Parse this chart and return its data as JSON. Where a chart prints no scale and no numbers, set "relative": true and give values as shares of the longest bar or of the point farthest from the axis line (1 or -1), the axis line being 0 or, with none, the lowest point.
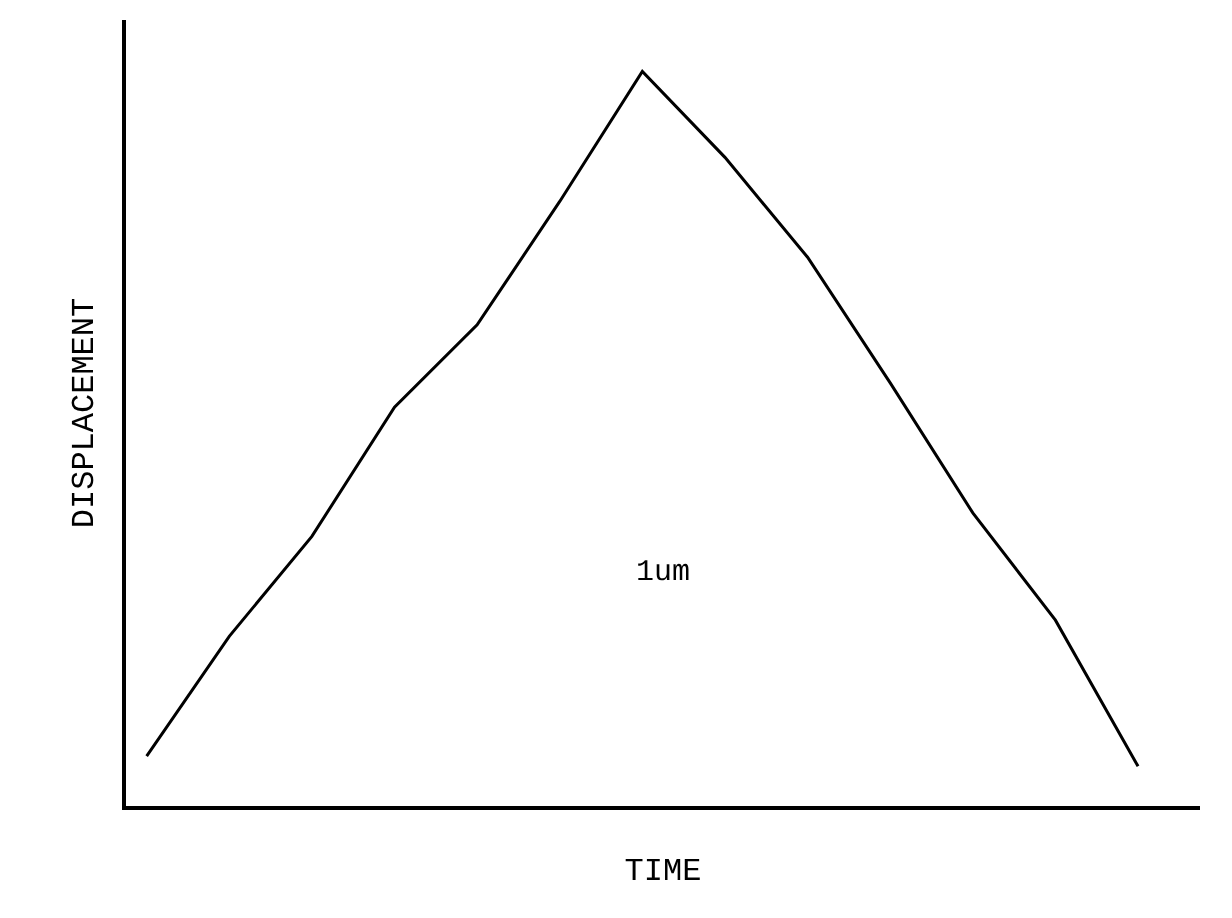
{
  "chart_data": {
    "type": "line",
    "relative": true,
    "xlabel": "TIME",
    "ylabel": "DISPLACEMENT",
    "categories": [
      null,
      null,
      null,
      null,
      null,
      null,
      null,
      null,
      null,
      null,
      null,
      null,
      null
    ],
    "series": [
      {
        "color": "#000000",
        "values": [
          0.068,
          0.231,
          0.367,
          0.543,
          0.655,
          0.823,
          1,
          0.883,
          0.747,
          0.576,
          0.399,
          0.253,
          0.054
        ]
      }
    ],
    "annotations": [
      "1um"
    ],
    "legend": false,
    "marker": "none",
    "line_style": "solid",
    "tick_labels": false
  }
}
